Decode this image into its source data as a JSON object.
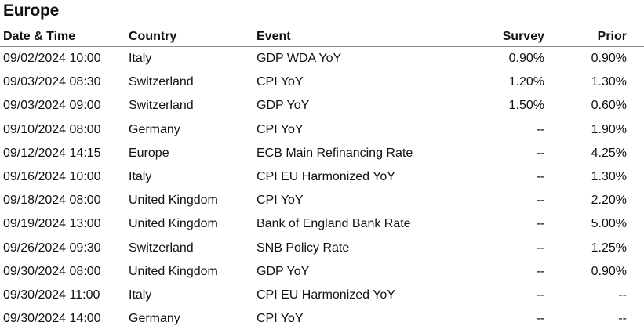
{
  "section": {
    "title": "Europe"
  },
  "table": {
    "headers": {
      "date_time": "Date & Time",
      "country": "Country",
      "event": "Event",
      "survey": "Survey",
      "prior": "Prior"
    },
    "rows": [
      {
        "date_time": "09/02/2024 10:00",
        "country": "Italy",
        "event": "GDP WDA YoY",
        "survey": "0.90%",
        "prior": "0.90%"
      },
      {
        "date_time": "09/03/2024 08:30",
        "country": "Switzerland",
        "event": "CPI YoY",
        "survey": "1.20%",
        "prior": "1.30%"
      },
      {
        "date_time": "09/03/2024 09:00",
        "country": "Switzerland",
        "event": "GDP YoY",
        "survey": "1.50%",
        "prior": "0.60%"
      },
      {
        "date_time": "09/10/2024 08:00",
        "country": "Germany",
        "event": "CPI YoY",
        "survey": "--",
        "prior": "1.90%"
      },
      {
        "date_time": "09/12/2024 14:15",
        "country": "Europe",
        "event": "ECB Main Refinancing Rate",
        "survey": "--",
        "prior": "4.25%"
      },
      {
        "date_time": "09/16/2024 10:00",
        "country": "Italy",
        "event": "CPI EU Harmonized YoY",
        "survey": "--",
        "prior": "1.30%"
      },
      {
        "date_time": "09/18/2024 08:00",
        "country": "United Kingdom",
        "event": "CPI YoY",
        "survey": "--",
        "prior": "2.20%"
      },
      {
        "date_time": "09/19/2024 13:00",
        "country": "United Kingdom",
        "event": "Bank of England Bank Rate",
        "survey": "--",
        "prior": "5.00%"
      },
      {
        "date_time": "09/26/2024 09:30",
        "country": "Switzerland",
        "event": "SNB Policy Rate",
        "survey": "--",
        "prior": "1.25%"
      },
      {
        "date_time": "09/30/2024 08:00",
        "country": "United Kingdom",
        "event": "GDP YoY",
        "survey": "--",
        "prior": "0.90%"
      },
      {
        "date_time": "09/30/2024 11:00",
        "country": "Italy",
        "event": "CPI EU Harmonized YoY",
        "survey": "--",
        "prior": "--"
      },
      {
        "date_time": "09/30/2024 14:00",
        "country": "Germany",
        "event": "CPI YoY",
        "survey": "--",
        "prior": "--"
      }
    ]
  }
}
